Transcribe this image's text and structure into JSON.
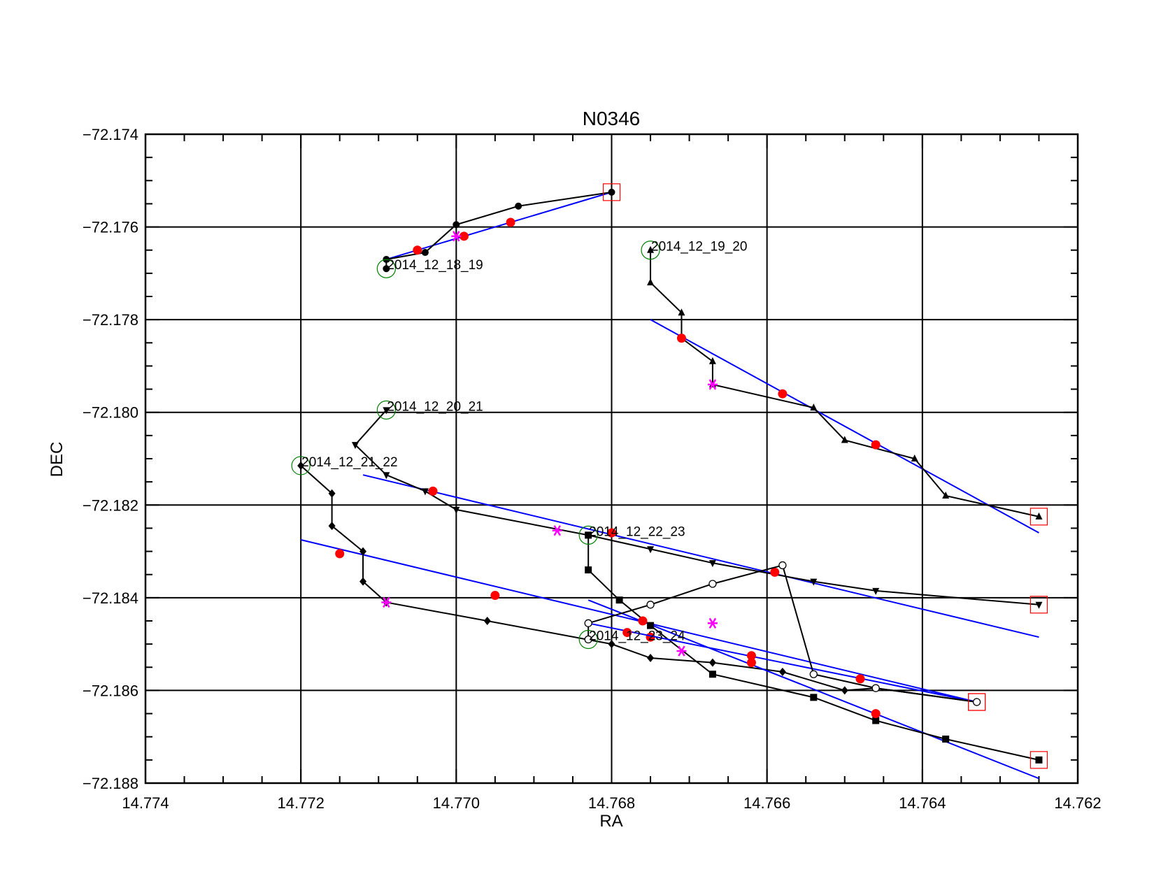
{
  "chart_data": {
    "type": "scatter",
    "title": "N0346",
    "xlabel": "RA",
    "ylabel": "DEC",
    "xlim": [
      14.774,
      14.762
    ],
    "ylim": [
      -72.188,
      -72.174
    ],
    "x_reversed": true,
    "grid": true,
    "xticks": [
      "14.774",
      "14.772",
      "14.770",
      "14.768",
      "14.766",
      "14.764",
      "14.762"
    ],
    "yticks": [
      "-72.174",
      "-72.176",
      "-72.178",
      "-72.180",
      "-72.182",
      "-72.184",
      "-72.186",
      "-72.188"
    ],
    "colors": {
      "track": "#000000",
      "fit": "#0000ff",
      "fit_point": "#ff0000",
      "mean_point": "#ff00ff",
      "start_marker": "#008000",
      "end_marker": "#ff0000"
    },
    "series": [
      {
        "name": "2014_12_18_19",
        "marker": "circle-filled",
        "x": [
          14.7709,
          14.7709,
          14.7704,
          14.77,
          14.7692,
          14.768
        ],
        "y": [
          -72.1769,
          -72.1767,
          -72.17655,
          -72.17595,
          -72.17555,
          -72.17525
        ],
        "fit_line": {
          "x": [
            14.7709,
            14.768
          ],
          "y": [
            -72.1767,
            -72.17525
          ]
        },
        "fit_points": {
          "x": [
            14.7705,
            14.7699,
            14.7693
          ],
          "y": [
            -72.1765,
            -72.1762,
            -72.1759
          ]
        },
        "mean_point": {
          "x": 14.77,
          "y": -72.1762
        }
      },
      {
        "name": "2014_12_19_20",
        "marker": "triangle-up",
        "x": [
          14.7675,
          14.7675,
          14.7671,
          14.7671,
          14.7667,
          14.7667,
          14.7654,
          14.765,
          14.7641,
          14.7637,
          14.7625
        ],
        "y": [
          -72.1765,
          -72.1772,
          -72.17785,
          -72.1784,
          -72.1789,
          -72.1794,
          -72.1799,
          -72.1806,
          -72.181,
          -72.1818,
          -72.18225
        ],
        "fit_line": {
          "x": [
            14.7675,
            14.7625
          ],
          "y": [
            -72.178,
            -72.1826
          ]
        },
        "fit_points": {
          "x": [
            14.7671,
            14.7658,
            14.7646
          ],
          "y": [
            -72.1784,
            -72.1796,
            -72.1807
          ]
        },
        "mean_point": {
          "x": 14.7667,
          "y": -72.1794
        }
      },
      {
        "name": "2014_12_20_21",
        "marker": "triangle-down",
        "x": [
          14.7709,
          14.7713,
          14.7709,
          14.7704,
          14.77,
          14.7683,
          14.7675,
          14.7667,
          14.7654,
          14.7646,
          14.7625
        ],
        "y": [
          -72.17995,
          -72.1807,
          -72.18135,
          -72.1817,
          -72.1821,
          -72.18265,
          -72.18295,
          -72.18325,
          -72.18365,
          -72.18385,
          -72.18415
        ],
        "fit_line": {
          "x": [
            14.7712,
            14.7625
          ],
          "y": [
            -72.18135,
            -72.18485
          ]
        },
        "fit_points": {
          "x": [
            14.7703,
            14.768,
            14.7659
          ],
          "y": [
            -72.1817,
            -72.1826,
            -72.18345
          ]
        },
        "mean_point": {
          "x": 14.7687,
          "y": -72.18255
        }
      },
      {
        "name": "2014_12_21_22",
        "marker": "diamond",
        "x": [
          14.772,
          14.7716,
          14.7716,
          14.7712,
          14.7712,
          14.7709,
          14.7696,
          14.768,
          14.7675,
          14.7667,
          14.7658,
          14.765,
          14.7646,
          14.7633
        ],
        "y": [
          -72.18115,
          -72.18175,
          -72.18245,
          -72.183,
          -72.18365,
          -72.1841,
          -72.1845,
          -72.185,
          -72.1853,
          -72.1854,
          -72.1856,
          -72.186,
          -72.18595,
          -72.18625
        ],
        "fit_line": {
          "x": [
            14.772,
            14.7633
          ],
          "y": [
            -72.18275,
            -72.18625
          ]
        },
        "fit_points": {
          "x": [
            14.7715,
            14.7695,
            14.7675
          ],
          "y": [
            -72.18305,
            -72.18395,
            -72.18485
          ]
        },
        "mean_point": {
          "x": 14.7709,
          "y": -72.1841
        }
      },
      {
        "name": "2014_12_22_23",
        "marker": "square-filled",
        "x": [
          14.7683,
          14.7683,
          14.7679,
          14.7675,
          14.7667,
          14.7654,
          14.7646,
          14.7637,
          14.7625
        ],
        "y": [
          -72.18265,
          -72.1834,
          -72.18405,
          -72.1846,
          -72.18565,
          -72.18615,
          -72.18665,
          -72.18705,
          -72.1875
        ],
        "fit_line": {
          "x": [
            14.7683,
            14.7625
          ],
          "y": [
            -72.18405,
            -72.1879
          ]
        },
        "fit_points": {
          "x": [
            14.7676,
            14.7662,
            14.7646
          ],
          "y": [
            -72.1845,
            -72.1854,
            -72.1865
          ]
        },
        "mean_point": {
          "x": 14.7667,
          "y": -72.18455
        }
      },
      {
        "name": "2014_12_23_24",
        "marker": "circle-open",
        "x": [
          14.7683,
          14.7683,
          14.7675,
          14.7667,
          14.7658,
          14.7654,
          14.7646,
          14.7633
        ],
        "y": [
          -72.1849,
          -72.18455,
          -72.18415,
          -72.1837,
          -72.1833,
          -72.18565,
          -72.18595,
          -72.18625
        ],
        "fit_line": {
          "x": [
            14.7683,
            14.7633
          ],
          "y": [
            -72.18455,
            -72.18625
          ]
        },
        "fit_points": {
          "x": [
            14.7678,
            14.7662,
            14.7648
          ],
          "y": [
            -72.18475,
            -72.18525,
            -72.18575
          ]
        },
        "mean_point": {
          "x": 14.7671,
          "y": -72.18515
        }
      }
    ]
  }
}
